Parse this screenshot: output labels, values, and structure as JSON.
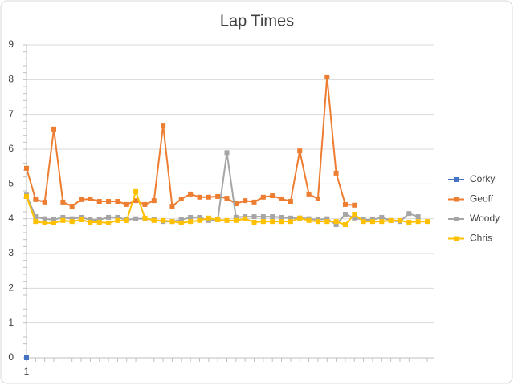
{
  "chart_data": {
    "type": "line",
    "title": "Lap Times",
    "categories": [
      "1",
      null,
      null,
      null,
      null,
      null,
      null,
      null,
      null,
      null,
      null,
      null,
      null,
      null,
      null,
      null,
      null,
      null,
      null,
      null,
      null,
      null,
      null,
      null,
      null,
      null,
      null,
      null,
      null,
      null,
      null,
      null,
      null,
      null,
      null,
      null,
      null,
      null,
      null,
      null,
      null,
      null,
      null,
      null,
      null
    ],
    "series": [
      {
        "name": "Corky",
        "color": "#4472c4",
        "values": [
          0,
          null,
          null,
          null,
          null,
          null,
          null,
          null,
          null,
          null,
          null,
          null,
          null,
          null,
          null,
          null,
          null,
          null,
          null,
          null,
          null,
          null,
          null,
          null,
          null,
          null,
          null,
          null,
          null,
          null,
          null,
          null,
          null,
          null,
          null,
          null,
          null,
          null,
          null,
          null,
          null,
          null,
          null,
          null,
          null
        ]
      },
      {
        "name": "Geoff",
        "color": "#ed7d31",
        "values": [
          5.45,
          4.55,
          4.48,
          6.58,
          4.48,
          4.36,
          4.55,
          4.57,
          4.5,
          4.5,
          4.5,
          4.41,
          4.52,
          4.41,
          4.52,
          6.69,
          4.36,
          4.57,
          4.71,
          4.62,
          4.62,
          4.64,
          4.59,
          4.43,
          4.52,
          4.48,
          4.62,
          4.66,
          4.57,
          4.5,
          5.95,
          4.71,
          4.57,
          8.08,
          5.31,
          4.41,
          4.39,
          null,
          null,
          null,
          null,
          null,
          null,
          null,
          null
        ]
      },
      {
        "name": "Woody",
        "color": "#a5a5a5",
        "values": [
          4.68,
          4.06,
          4.0,
          3.97,
          4.04,
          4.0,
          4.04,
          3.97,
          3.97,
          4.04,
          4.04,
          3.97,
          4.0,
          4.0,
          3.97,
          3.92,
          3.92,
          3.97,
          4.04,
          4.04,
          3.95,
          3.97,
          5.9,
          4.04,
          4.06,
          4.06,
          4.06,
          4.06,
          4.04,
          4.02,
          4.02,
          4.0,
          3.97,
          4.0,
          3.83,
          4.13,
          4.02,
          3.97,
          3.97,
          4.04,
          3.95,
          3.92,
          4.15,
          4.06,
          null
        ]
      },
      {
        "name": "Chris",
        "color": "#ffc000",
        "values": [
          4.64,
          3.92,
          3.88,
          3.88,
          3.95,
          3.92,
          3.97,
          3.9,
          3.9,
          3.88,
          3.95,
          3.95,
          4.78,
          4.02,
          3.95,
          3.95,
          3.92,
          3.88,
          3.92,
          3.95,
          4.02,
          3.97,
          3.95,
          3.95,
          4.0,
          3.9,
          3.92,
          3.92,
          3.92,
          3.92,
          4.02,
          3.95,
          3.92,
          3.92,
          3.92,
          3.83,
          4.13,
          3.92,
          3.92,
          3.92,
          3.95,
          3.95,
          3.9,
          3.92,
          3.92
        ]
      }
    ],
    "ylim": [
      0,
      9
    ],
    "yticks": [
      0,
      1,
      2,
      3,
      4,
      5,
      6,
      7,
      8,
      9
    ],
    "grid": true,
    "legend": "right"
  }
}
